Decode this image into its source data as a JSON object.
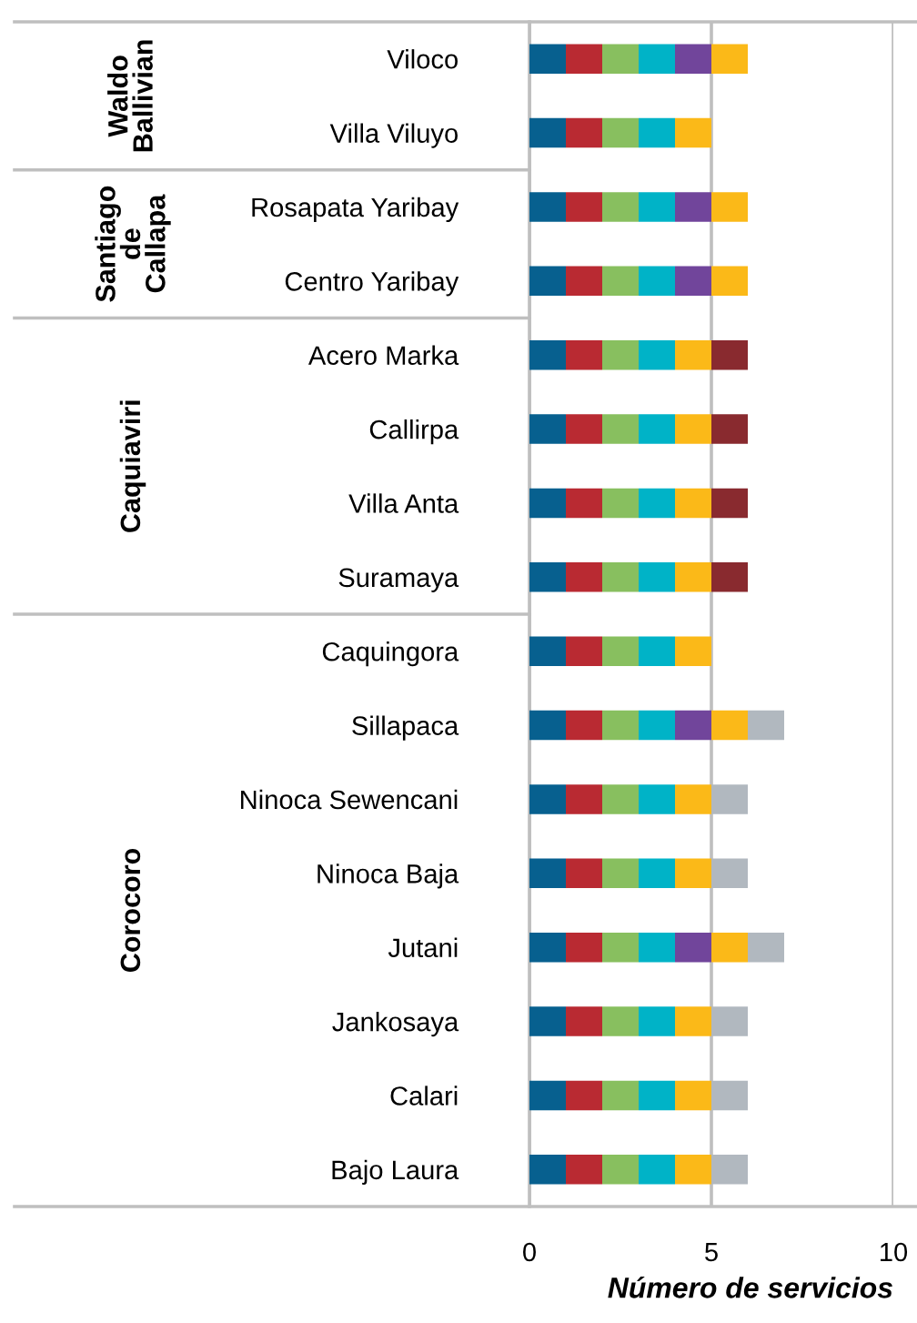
{
  "chart_data": {
    "type": "bar",
    "orientation": "horizontal",
    "stacked": true,
    "xlabel": "Número de servicios",
    "categories": [
      "Viloco",
      "Villa Viluyo",
      "Rosapata Yaribay",
      "Centro Yaribay",
      "Acero Marka",
      "Callirpa",
      "Villa Anta",
      "Suramaya",
      "Caquingora",
      "Sillapaca",
      "Ninoca Sewencani",
      "Ninoca Baja",
      "Jutani",
      "Jankosaya",
      "Calari",
      "Bajo Laura"
    ],
    "series": [
      {
        "color": "#07608f",
        "values": [
          1,
          1,
          1,
          1,
          1,
          1,
          1,
          1,
          1,
          1,
          1,
          1,
          1,
          1,
          1,
          1
        ]
      },
      {
        "color": "#b92a32",
        "values": [
          1,
          1,
          1,
          1,
          1,
          1,
          1,
          1,
          1,
          1,
          1,
          1,
          1,
          1,
          1,
          1
        ]
      },
      {
        "color": "#88bf5f",
        "values": [
          1,
          1,
          1,
          1,
          1,
          1,
          1,
          1,
          1,
          1,
          1,
          1,
          1,
          1,
          1,
          1
        ]
      },
      {
        "color": "#00b3c7",
        "values": [
          1,
          1,
          1,
          1,
          1,
          1,
          1,
          1,
          1,
          1,
          1,
          1,
          1,
          1,
          1,
          1
        ]
      },
      {
        "color": "#71459b",
        "values": [
          1,
          null,
          1,
          1,
          null,
          null,
          null,
          null,
          null,
          1,
          null,
          null,
          1,
          null,
          null,
          null
        ]
      },
      {
        "color": "#fbb918",
        "values": [
          1,
          1,
          1,
          1,
          1,
          1,
          1,
          1,
          1,
          1,
          1,
          1,
          1,
          1,
          1,
          1
        ]
      },
      {
        "color": "#892a2f",
        "values": [
          null,
          null,
          null,
          null,
          1,
          1,
          1,
          1,
          null,
          null,
          null,
          null,
          null,
          null,
          null,
          null
        ]
      },
      {
        "color": "#b1b8bf",
        "values": [
          null,
          null,
          null,
          null,
          null,
          null,
          null,
          null,
          null,
          1,
          1,
          1,
          1,
          1,
          1,
          1
        ]
      }
    ],
    "xlim": [
      0,
      10
    ],
    "xticks": [
      0,
      5,
      10
    ],
    "grid": "x",
    "annotations": [
      "Waldo\nBallivian",
      "Santiago\nde\nCallapa",
      "Caquiaviri",
      "Corocoro"
    ]
  }
}
